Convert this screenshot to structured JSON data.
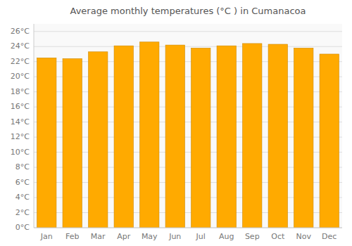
{
  "chart_data": {
    "type": "bar",
    "title": "Average monthly temperatures (°C ) in Cumanacoa",
    "categories": [
      "Jan",
      "Feb",
      "Mar",
      "Apr",
      "May",
      "Jun",
      "Jul",
      "Aug",
      "Sep",
      "Oct",
      "Nov",
      "Dec"
    ],
    "values": [
      22.5,
      22.4,
      23.3,
      24.1,
      24.6,
      24.2,
      23.8,
      24.1,
      24.4,
      24.3,
      23.8,
      23.0
    ],
    "color": "#FFAA00",
    "ylim": [
      0,
      27
    ],
    "yticks": [
      {
        "value": 0,
        "label": "0°C"
      },
      {
        "value": 2,
        "label": "2°C"
      },
      {
        "value": 4,
        "label": "4°C"
      },
      {
        "value": 6,
        "label": "6°C"
      },
      {
        "value": 8,
        "label": "8°C"
      },
      {
        "value": 10,
        "label": "10°C"
      },
      {
        "value": 12,
        "label": "12°C"
      },
      {
        "value": 14,
        "label": "14°C"
      },
      {
        "value": 16,
        "label": "16°C"
      },
      {
        "value": 18,
        "label": "18°C"
      },
      {
        "value": 20,
        "label": "20°C"
      },
      {
        "value": 22,
        "label": "22°C"
      },
      {
        "value": 24,
        "label": "24°C"
      },
      {
        "value": 26,
        "label": "26°C"
      }
    ],
    "grid": true
  }
}
